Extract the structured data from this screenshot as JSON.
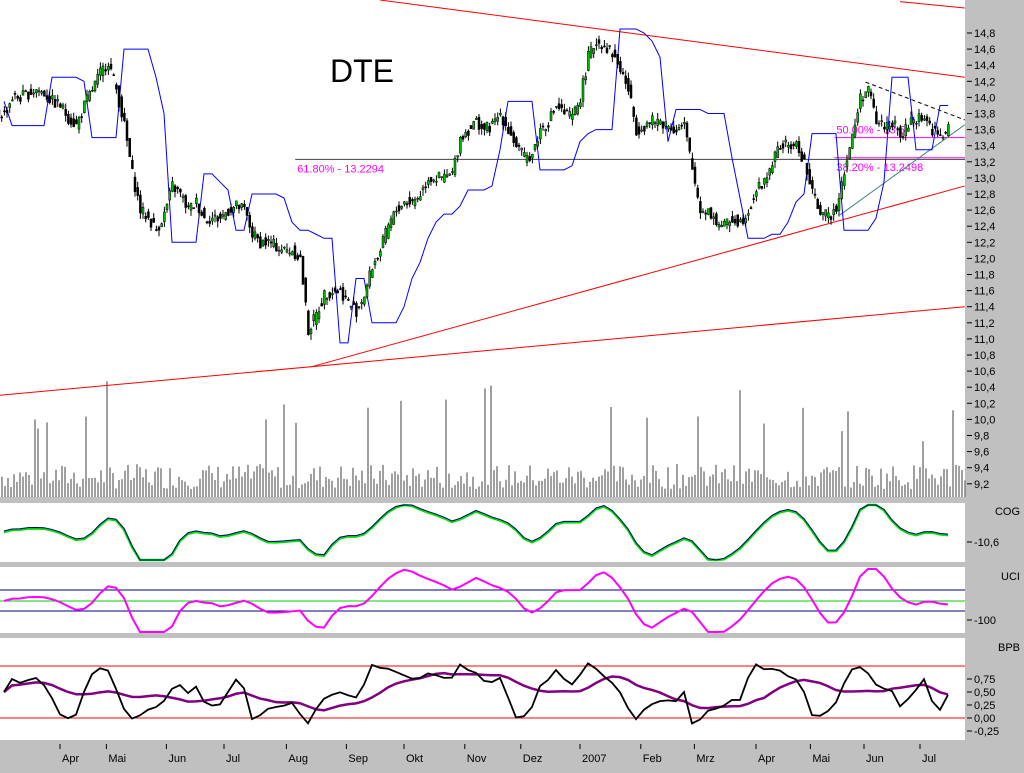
{
  "chart_data": {
    "type": "candlestick",
    "title": "DTE",
    "ylim": [
      9.1,
      14.9
    ],
    "y_ticks": [
      "14,8",
      "14,6",
      "14,4",
      "14,2",
      "14,0",
      "13,8",
      "13,6",
      "13,4",
      "13,2",
      "13,0",
      "12,8",
      "12,6",
      "12,4",
      "12,2",
      "12,0",
      "11,8",
      "11,6",
      "11,4",
      "11,2",
      "11,0",
      "10,8",
      "10,6",
      "10,4",
      "10,2",
      "10,0",
      "9,8",
      "9,6",
      "9,4",
      "9,2"
    ],
    "x_ticks": [
      {
        "label": "Apr",
        "i": 7
      },
      {
        "label": "Mai",
        "i": 12.8
      },
      {
        "label": "Jun",
        "i": 20.3
      },
      {
        "label": "Jul",
        "i": 27.5
      },
      {
        "label": "Aug",
        "i": 35.3
      },
      {
        "label": "Sep",
        "i": 42.8
      },
      {
        "label": "Okt",
        "i": 50
      },
      {
        "label": "Nov",
        "i": 57.6
      },
      {
        "label": "Dez",
        "i": 64.6
      },
      {
        "label": "2007",
        "i": 72
      },
      {
        "label": "Feb",
        "i": 79.6
      },
      {
        "label": "Mrz",
        "i": 86.3
      },
      {
        "label": "Apr",
        "i": 94
      },
      {
        "label": "Mai",
        "i": 100.8
      },
      {
        "label": "Jun",
        "i": 107.5
      },
      {
        "label": "Jul",
        "i": 114.5
      }
    ],
    "close": [
      13.8,
      14.0,
      14.0,
      14.05,
      14.1,
      14.05,
      13.95,
      13.9,
      13.75,
      13.65,
      13.9,
      14.1,
      14.3,
      14.45,
      14.1,
      13.65,
      13.05,
      12.6,
      12.5,
      12.35,
      12.55,
      12.9,
      12.8,
      12.6,
      12.7,
      12.5,
      12.5,
      12.5,
      12.6,
      12.65,
      12.6,
      12.3,
      12.2,
      12.2,
      12.15,
      12.1,
      12.1,
      12.0,
      11.1,
      11.3,
      11.55,
      11.6,
      11.6,
      11.45,
      11.35,
      11.55,
      11.9,
      12.1,
      12.4,
      12.6,
      12.7,
      12.7,
      12.8,
      13.0,
      13.0,
      13.0,
      13.05,
      13.5,
      13.6,
      13.7,
      13.6,
      13.65,
      13.8,
      13.6,
      13.4,
      13.25,
      13.3,
      13.6,
      13.7,
      13.9,
      13.8,
      13.75,
      14.0,
      14.5,
      14.7,
      14.65,
      14.55,
      14.35,
      14.1,
      13.6,
      13.65,
      13.7,
      13.7,
      13.65,
      13.6,
      13.65,
      13.1,
      12.6,
      12.6,
      12.45,
      12.4,
      12.5,
      12.45,
      12.6,
      12.85,
      12.95,
      13.2,
      13.4,
      13.4,
      13.4,
      13.2,
      12.8,
      12.6,
      12.5,
      12.65,
      13.1,
      13.5,
      14.0,
      14.1,
      13.7,
      13.65,
      13.7,
      13.5,
      13.65,
      13.75,
      13.75,
      13.6,
      13.5,
      13.6
    ],
    "trendlines": [
      {
        "color": "#ff0000",
        "from": [
          -0.5,
          10.3
        ],
        "to": [
          120.1,
          11.4
        ]
      },
      {
        "color": "#ff0000",
        "from": [
          38.3,
          10.65
        ],
        "to": [
          120.1,
          12.9
        ]
      },
      {
        "color": "#ff0000",
        "from": [
          47,
          15.21
        ],
        "to": [
          120.1,
          14.25
        ]
      },
      {
        "color": "#ff0000",
        "from": [
          112,
          15.19
        ],
        "to": [
          120.1,
          15.11
        ]
      },
      {
        "color": "#408080",
        "from": [
          104.5,
          12.54
        ],
        "to": [
          120.1,
          13.66
        ]
      },
      {
        "color": "#000000",
        "from": [
          107.7,
          14.19
        ],
        "to": [
          120.1,
          13.72
        ],
        "dashed": true
      }
    ],
    "fibonacci": [
      {
        "label": "61.80% - 13.2294",
        "value": 13.2294,
        "from": 36.4
      },
      {
        "label": "50.00% - 13.5",
        "value": 13.5,
        "from": 103.8
      },
      {
        "label": "38.20% - 13.2498",
        "value": 13.2498,
        "from": 103.8
      }
    ],
    "indicators": [
      {
        "name": "COG",
        "tick": "-10,6"
      },
      {
        "name": "UCI",
        "tick": "-100"
      },
      {
        "name": "BPB",
        "ticks": [
          "0,75",
          "0,50",
          "0,25",
          "0,00",
          "-0,25"
        ]
      }
    ],
    "colors": {
      "up": "#00c000",
      "down": "#000000",
      "stop": "#0000ff",
      "trend": "#ff0000",
      "fib": "#ff00ff",
      "cog": "#00e000",
      "uci": "#ff00ff",
      "bpb_avg": "#800080"
    }
  }
}
